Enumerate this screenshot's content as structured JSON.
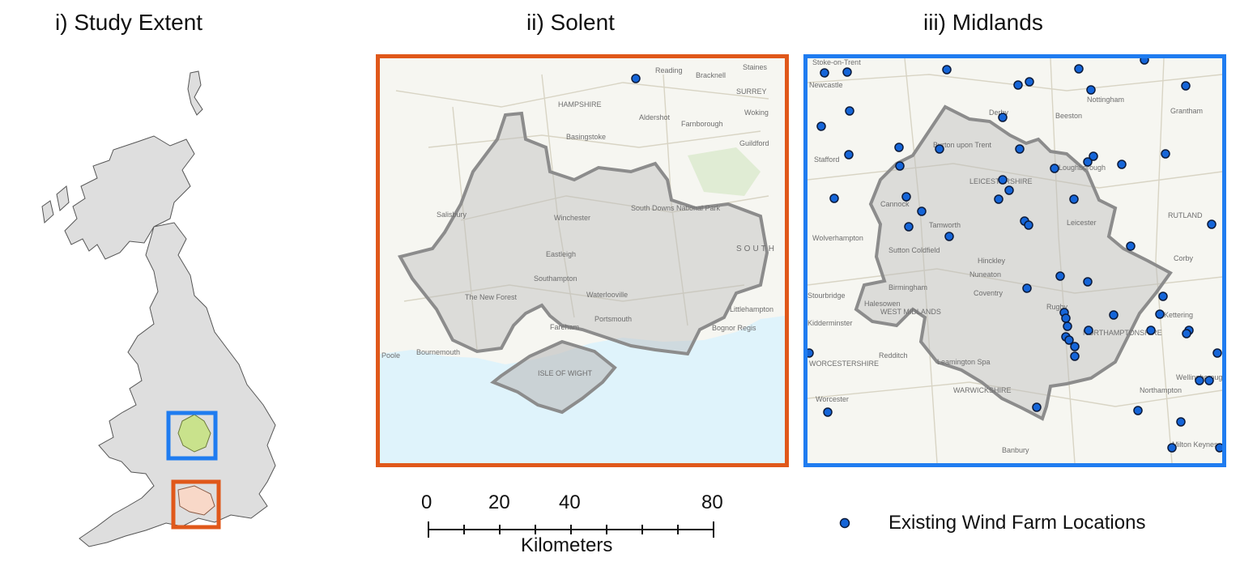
{
  "panels": {
    "study_extent": {
      "title": "i) Study Extent"
    },
    "solent": {
      "title": "ii) Solent",
      "frame_color": "#e0581a",
      "place_labels": [
        "Reading",
        "Bracknell",
        "Staines",
        "HAMPSHIRE",
        "SURREY",
        "Woking",
        "Basingstoke",
        "Farnborough",
        "Aldershot",
        "Guildford",
        "Salisbury",
        "Winchester",
        "South Downs National Park",
        "Eastleigh",
        "SOUTH",
        "Southampton",
        "The New Forest",
        "Waterlooville",
        "Fareham",
        "Portsmouth",
        "Littlehampton",
        "Bognor Regis",
        "Poole",
        "Bournemouth",
        "ISLE OF WIGHT"
      ],
      "wind_farm_count": 1
    },
    "midlands": {
      "title": "iii) Midlands",
      "frame_color": "#1f7cf0",
      "place_labels": [
        "Stoke-on-Trent",
        "Newcastle",
        "Derby",
        "Nottingham",
        "Beeston",
        "Grantham",
        "Stafford",
        "Burton upon Trent",
        "LEICESTERSHIRE",
        "Loughborough",
        "Cannock",
        "Tamworth",
        "Leicester",
        "RUTLAND",
        "Wolverhampton",
        "Sutton Coldfield",
        "Hinckley",
        "Nuneaton",
        "Corby",
        "Birmingham",
        "Halesowen",
        "WEST MIDLANDS",
        "Coventry",
        "Rugby",
        "NORTHAMPTONSHIRE",
        "Kettering",
        "Stourbridge",
        "Kidderminster",
        "Redditch",
        "Leamington Spa",
        "Wellingborough",
        "WORCESTERSHIRE",
        "WARWICKSHIRE",
        "Northampton",
        "Worcester",
        "Banbury",
        "Milton Keynes"
      ],
      "wind_farm_count": 57
    }
  },
  "scale_bar": {
    "ticks": [
      "0",
      "20",
      "40",
      "80"
    ],
    "unit": "Kilometers"
  },
  "legend": {
    "label": "Existing Wind Farm Locations",
    "marker_color": "#1565d8"
  },
  "colors": {
    "uk_fill": "#dedede",
    "midlands_inset": "#1f7cf0",
    "solent_inset": "#e0581a",
    "midlands_region_fill": "#c9e28c",
    "solent_region_fill": "#f8d8c8",
    "sea": "#dff3fb",
    "land": "#f6f6f1",
    "region_overlay": "#bdbdbd"
  }
}
